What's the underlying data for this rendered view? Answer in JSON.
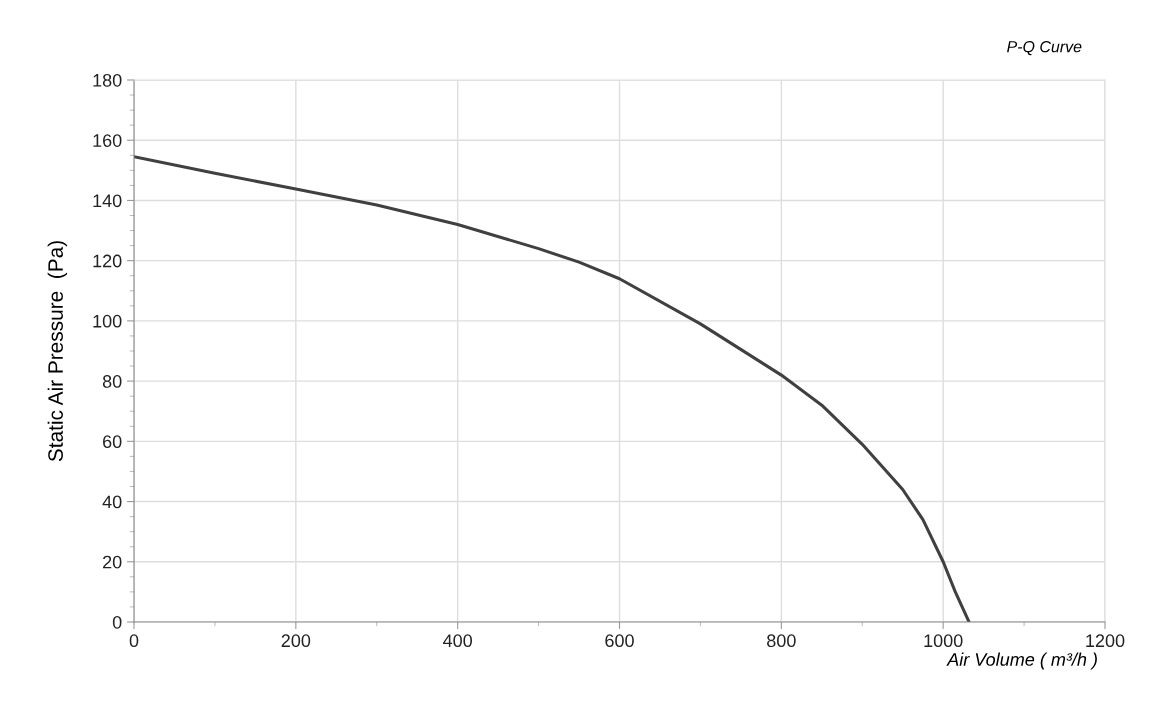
{
  "chart_data": {
    "type": "line",
    "title": "P-Q Curve",
    "xlabel": "Air Volume ( m³/h )",
    "ylabel": "Static Air Pressure  (Pa)",
    "x": [
      0,
      100,
      200,
      300,
      400,
      500,
      550,
      600,
      700,
      800,
      850,
      900,
      950,
      975,
      1000,
      1015,
      1032
    ],
    "series": [
      {
        "color": "#404040",
        "values": [
          154.5,
          149,
          143.8,
          138.5,
          132,
          124,
          119.5,
          114,
          99,
          82,
          72,
          59,
          44,
          34,
          20,
          10,
          0
        ]
      }
    ],
    "xlim": [
      0,
      1200
    ],
    "ylim": [
      0,
      180
    ],
    "xticks": [
      0,
      {
        "value": 100,
        "label": null
      },
      200,
      {
        "value": 300,
        "label": null
      },
      400,
      {
        "value": 500,
        "label": null
      },
      600,
      {
        "value": 700,
        "label": null
      },
      800,
      {
        "value": 900,
        "label": null
      },
      1000,
      {
        "value": 1100,
        "label": null
      },
      1200
    ],
    "yticks": [
      0,
      {
        "value": 5,
        "label": null
      },
      {
        "value": 10,
        "label": null
      },
      {
        "value": 15,
        "label": null
      },
      20,
      {
        "value": 25,
        "label": null
      },
      {
        "value": 30,
        "label": null
      },
      {
        "value": 35,
        "label": null
      },
      40,
      {
        "value": 45,
        "label": null
      },
      {
        "value": 50,
        "label": null
      },
      {
        "value": 55,
        "label": null
      },
      60,
      {
        "value": 65,
        "label": null
      },
      {
        "value": 70,
        "label": null
      },
      {
        "value": 75,
        "label": null
      },
      80,
      {
        "value": 85,
        "label": null
      },
      {
        "value": 90,
        "label": null
      },
      {
        "value": 95,
        "label": null
      },
      100,
      {
        "value": 105,
        "label": null
      },
      {
        "value": 110,
        "label": null
      },
      {
        "value": 115,
        "label": null
      },
      120,
      {
        "value": 125,
        "label": null
      },
      {
        "value": 130,
        "label": null
      },
      {
        "value": 135,
        "label": null
      },
      140,
      {
        "value": 145,
        "label": null
      },
      {
        "value": 150,
        "label": null
      },
      {
        "value": 155,
        "label": null
      },
      160,
      {
        "value": 165,
        "label": null
      },
      {
        "value": 170,
        "label": null
      },
      {
        "value": 175,
        "label": null
      },
      180
    ],
    "grid": true,
    "marker": "none",
    "line_style": "solid",
    "legend": false
  }
}
